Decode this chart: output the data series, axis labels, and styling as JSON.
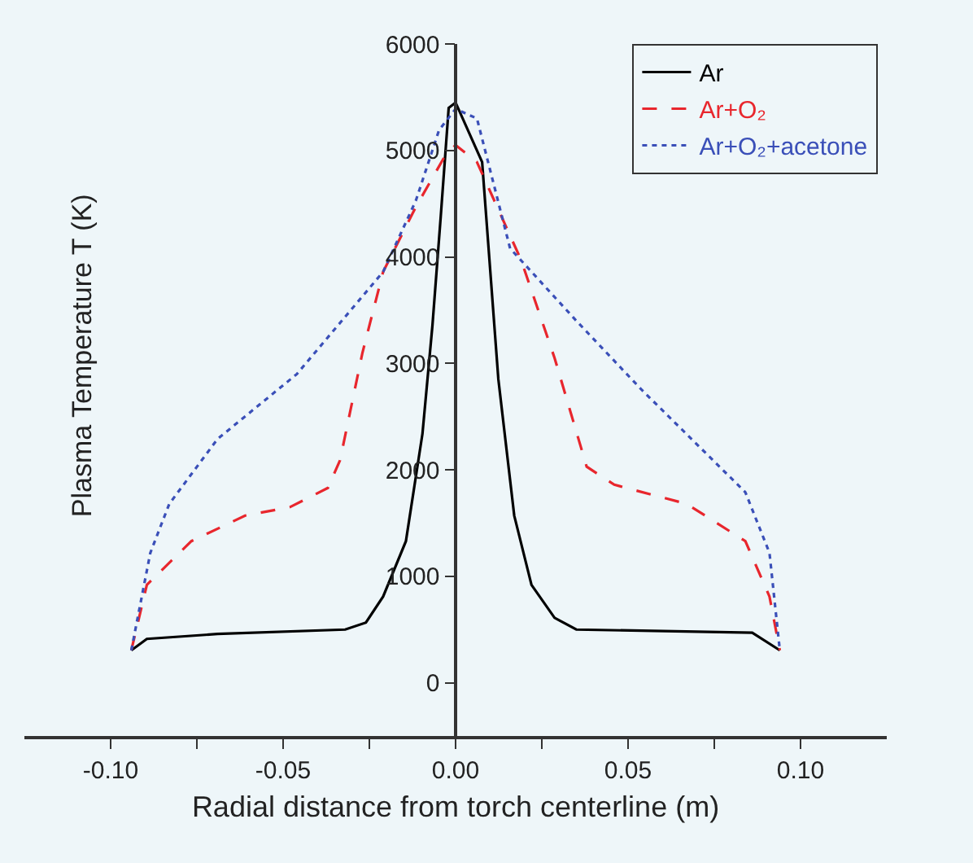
{
  "chart_data": {
    "type": "line",
    "xlabel": "Radial distance from torch centerline (m)",
    "ylabel": "Plasma Temperature T (K)",
    "xlim": [
      -0.125,
      0.125
    ],
    "ylim": [
      -500,
      6000
    ],
    "xticks": [
      {
        "value": -0.1,
        "label": "-0.10"
      },
      {
        "value": -0.075,
        "label": null
      },
      -0.05,
      {
        "value": -0.025,
        "label": null
      },
      {
        "value": 0,
        "label": "0.00"
      },
      {
        "value": 0.025,
        "label": null
      },
      0.05,
      {
        "value": 0.075,
        "label": null
      },
      {
        "value": 0.1,
        "label": "0.10"
      }
    ],
    "yticks": [
      0,
      1000,
      2000,
      3000,
      4000,
      5000,
      6000
    ],
    "legend": "top right",
    "grid": false,
    "series": [
      {
        "name": "Ar",
        "color": "#000000",
        "line_style": "solid",
        "x": [
          -0.094,
          -0.0895,
          -0.069,
          -0.032,
          -0.026,
          -0.021,
          -0.0144,
          -0.0096,
          -0.0067,
          -0.0043,
          -0.002,
          0,
          0.0077,
          0.0124,
          0.017,
          0.022,
          0.0287,
          0.035,
          0.086,
          0.094
        ],
        "values": [
          305,
          412,
          458,
          500,
          565,
          810,
          1330,
          2340,
          3360,
          4380,
          5400,
          5450,
          4890,
          2850,
          1570,
          920,
          610,
          500,
          470,
          305
        ]
      },
      {
        "name": "Ar+O₂",
        "color": "#e8262d",
        "line_style": "dashed",
        "x": [
          -0.094,
          -0.0895,
          -0.0766,
          -0.061,
          -0.048,
          -0.037,
          -0.0335,
          -0.027,
          -0.021,
          -0.0115,
          -0.0034,
          0,
          0.0062,
          0.019,
          0.0287,
          0.038,
          0.046,
          0.067,
          0.084,
          0.091,
          0.094
        ],
        "values": [
          305,
          920,
          1330,
          1570,
          1650,
          1830,
          2090,
          3100,
          3860,
          4470,
          4930,
          5050,
          4890,
          3970,
          3050,
          2030,
          1860,
          1680,
          1330,
          810,
          305
        ]
      },
      {
        "name": "Ar+O₂+acetone",
        "color": "#3a4fb8",
        "line_style": "dotted",
        "x": [
          -0.094,
          -0.0885,
          -0.083,
          -0.069,
          -0.046,
          -0.021,
          -0.0115,
          -0.0048,
          0,
          0.0062,
          0.0158,
          0.035,
          0.054,
          0.084,
          0.091,
          0.094
        ],
        "values": [
          305,
          1220,
          1680,
          2290,
          2900,
          3860,
          4530,
          5190,
          5390,
          5300,
          4080,
          3400,
          2750,
          1790,
          1220,
          305
        ]
      }
    ]
  }
}
